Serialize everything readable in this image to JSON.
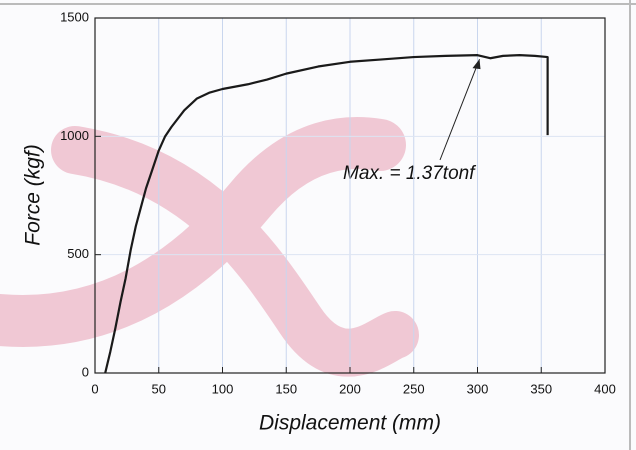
{
  "chart_data": {
    "type": "line",
    "x": [
      8,
      12,
      16,
      20,
      24,
      28,
      32,
      36,
      40,
      45,
      50,
      55,
      60,
      70,
      80,
      90,
      100,
      110,
      120,
      135,
      150,
      175,
      200,
      225,
      250,
      275,
      300,
      310,
      320,
      333,
      345,
      355,
      355
    ],
    "values": [
      0,
      90,
      190,
      300,
      400,
      520,
      620,
      700,
      780,
      860,
      940,
      1000,
      1040,
      1110,
      1160,
      1185,
      1200,
      1210,
      1220,
      1240,
      1265,
      1295,
      1315,
      1325,
      1335,
      1340,
      1343,
      1330,
      1340,
      1343,
      1340,
      1335,
      1005
    ],
    "color": "#1a1a1a",
    "xlabel": "Displacement (mm)",
    "ylabel": "Force (kgf)",
    "annotation": "Max. = 1.37tonf",
    "xlim": [
      0,
      400
    ],
    "xticks": [
      0,
      50,
      100,
      150,
      200,
      250,
      300,
      350,
      400
    ],
    "ylim": [
      0,
      1500
    ],
    "yticks": [
      0,
      500,
      1000,
      1500
    ],
    "grid": true
  }
}
